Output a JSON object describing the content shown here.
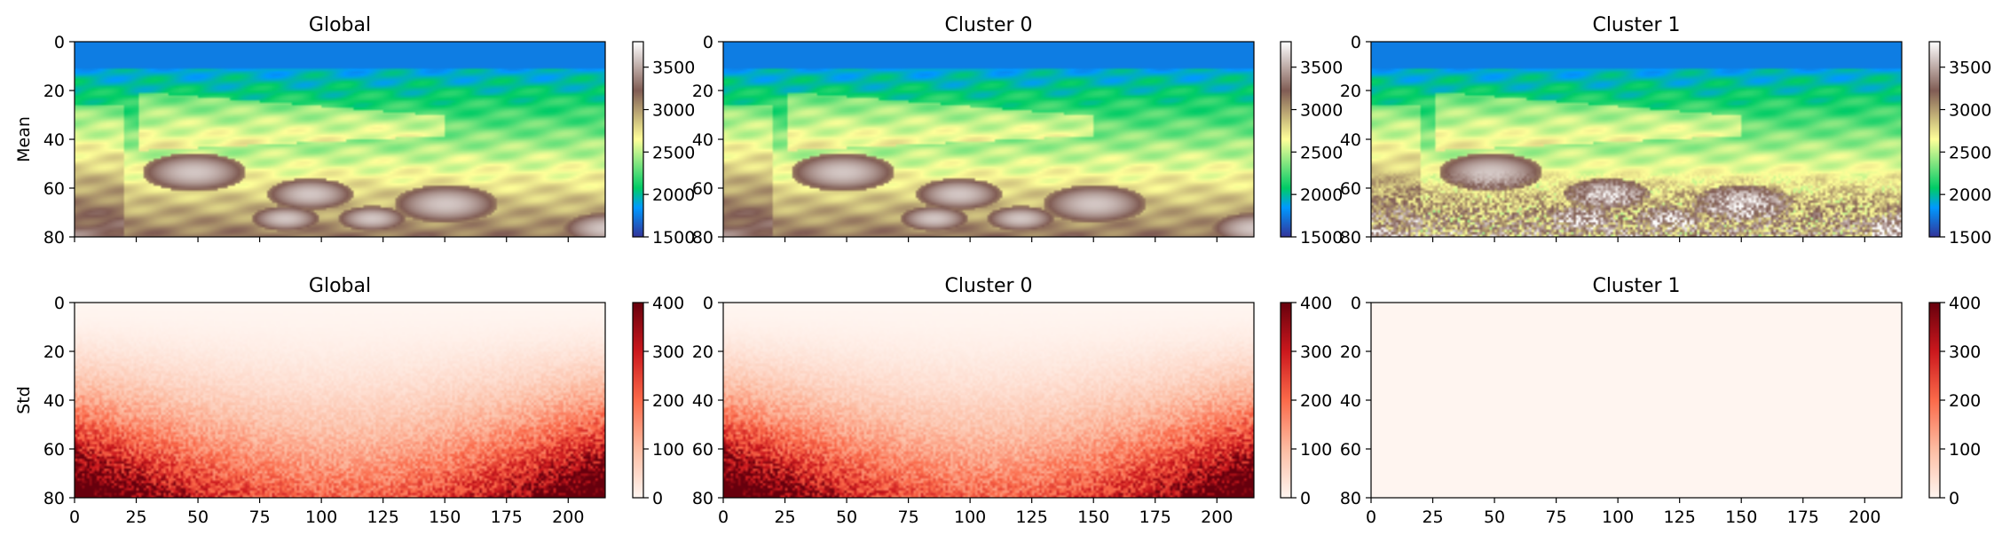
{
  "chart_data": [
    {
      "type": "heatmap",
      "title": "Global",
      "ylabel": "Mean",
      "xlabel": "",
      "xlim": [
        0,
        215
      ],
      "ylim": [
        80,
        0
      ],
      "yticks": [
        "0",
        "20",
        "40",
        "60",
        "80"
      ],
      "xticks_visible": false,
      "colormap": "terrain",
      "colorbar_range": [
        1500,
        3800
      ],
      "colorbar_ticks": [
        "1500",
        "2000",
        "2500",
        "3000",
        "3500"
      ],
      "texture": "smooth"
    },
    {
      "type": "heatmap",
      "title": "Cluster 0",
      "ylabel": "",
      "xlabel": "",
      "xlim": [
        0,
        215
      ],
      "ylim": [
        80,
        0
      ],
      "yticks": [
        "0",
        "20",
        "40",
        "60",
        "80"
      ],
      "xticks_visible": false,
      "colormap": "terrain",
      "colorbar_range": [
        1500,
        3800
      ],
      "colorbar_ticks": [
        "1500",
        "2000",
        "2500",
        "3000",
        "3500"
      ],
      "texture": "smooth"
    },
    {
      "type": "heatmap",
      "title": "Cluster 1",
      "ylabel": "",
      "xlabel": "",
      "xlim": [
        0,
        215
      ],
      "ylim": [
        80,
        0
      ],
      "yticks": [
        "0",
        "20",
        "40",
        "60",
        "80"
      ],
      "xticks_visible": false,
      "colormap": "terrain",
      "colorbar_range": [
        1500,
        3800
      ],
      "colorbar_ticks": [
        "1500",
        "2000",
        "2500",
        "3000",
        "3500"
      ],
      "texture": "noisy"
    },
    {
      "type": "heatmap",
      "title": "Global",
      "ylabel": "Std",
      "xlabel": "",
      "xlim": [
        0,
        215
      ],
      "ylim": [
        80,
        0
      ],
      "yticks": [
        "0",
        "20",
        "40",
        "60",
        "80"
      ],
      "xticks": [
        "0",
        "25",
        "50",
        "75",
        "100",
        "125",
        "150",
        "175",
        "200"
      ],
      "colormap": "Reds",
      "colorbar_range": [
        0,
        400
      ],
      "colorbar_ticks": [
        "0",
        "100",
        "200",
        "300",
        "400"
      ],
      "texture": "std"
    },
    {
      "type": "heatmap",
      "title": "Cluster 0",
      "ylabel": "",
      "xlabel": "",
      "xlim": [
        0,
        215
      ],
      "ylim": [
        80,
        0
      ],
      "yticks": [
        "0",
        "20",
        "40",
        "60",
        "80"
      ],
      "xticks": [
        "0",
        "25",
        "50",
        "75",
        "100",
        "125",
        "150",
        "175",
        "200"
      ],
      "colormap": "Reds",
      "colorbar_range": [
        0,
        400
      ],
      "colorbar_ticks": [
        "0",
        "100",
        "200",
        "300",
        "400"
      ],
      "texture": "std"
    },
    {
      "type": "heatmap",
      "title": "Cluster 1",
      "ylabel": "",
      "xlabel": "",
      "xlim": [
        0,
        215
      ],
      "ylim": [
        80,
        0
      ],
      "yticks": [
        "0",
        "20",
        "40",
        "60",
        "80"
      ],
      "xticks": [
        "0",
        "25",
        "50",
        "75",
        "100",
        "125",
        "150",
        "175",
        "200"
      ],
      "colormap": "Reds",
      "colorbar_range": [
        0,
        400
      ],
      "colorbar_ticks": [
        "0",
        "100",
        "200",
        "300",
        "400"
      ],
      "texture": "flat",
      "value": 0
    }
  ]
}
